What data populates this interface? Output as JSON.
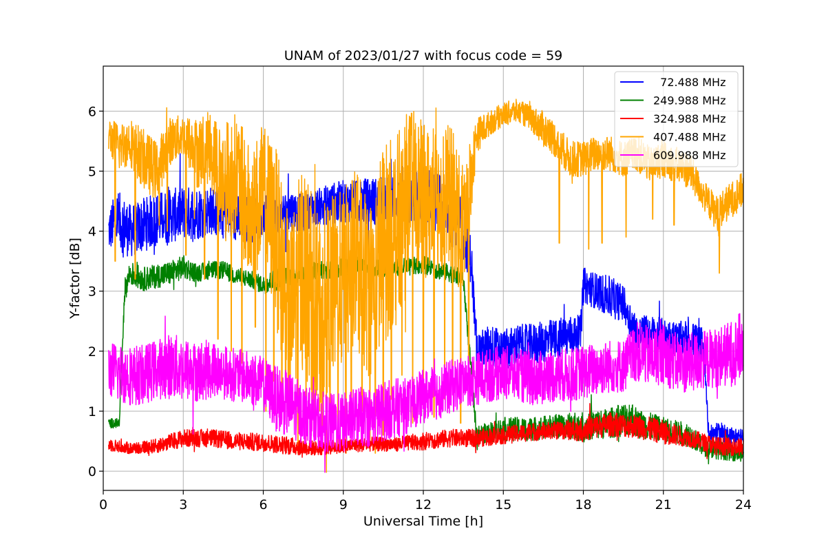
{
  "chart_data": {
    "type": "line",
    "title": "UNAM of 2023/01/27 with focus code = 59",
    "xlabel": "Universal Time [h]",
    "ylabel": "Y-factor [dB]",
    "xlim": [
      0,
      24
    ],
    "ylim": [
      -0.32,
      6.75
    ],
    "xticks": [
      0,
      3,
      6,
      9,
      12,
      15,
      18,
      21,
      24
    ],
    "yticks": [
      0,
      1,
      2,
      3,
      4,
      5,
      6
    ],
    "grid": true,
    "legend_position": "top-right",
    "series": [
      {
        "name": "  72.488 MHz",
        "color": "#0000ff",
        "x": [
          0.2,
          0.5,
          1,
          1.5,
          2,
          2.5,
          3,
          3.5,
          4,
          4.5,
          5,
          5.5,
          6,
          6.5,
          7,
          7.5,
          8,
          8.5,
          9,
          9.5,
          10,
          10.5,
          11,
          11.5,
          12,
          12.5,
          13,
          13.5,
          13.8,
          14,
          14.5,
          15,
          15.5,
          16,
          16.5,
          17,
          17.5,
          17.9,
          18,
          18.5,
          19,
          19.5,
          20,
          20.5,
          21,
          21.5,
          22,
          22.5,
          22.7,
          23,
          23.5,
          24
        ],
        "y": [
          4.0,
          4.2,
          4.0,
          4.1,
          4.2,
          4.25,
          4.3,
          4.3,
          4.35,
          4.3,
          4.2,
          4.2,
          4.25,
          4.2,
          4.35,
          4.3,
          4.4,
          4.45,
          4.5,
          4.5,
          4.5,
          4.5,
          4.55,
          4.5,
          4.6,
          4.5,
          4.3,
          4.0,
          3.5,
          2.0,
          2.1,
          2.0,
          2.1,
          2.1,
          2.15,
          2.2,
          2.25,
          2.3,
          3.1,
          3.0,
          2.9,
          2.8,
          2.3,
          2.3,
          2.25,
          2.2,
          2.2,
          2.1,
          0.6,
          0.65,
          0.6,
          0.55
        ],
        "amp": [
          0.35,
          0.5,
          0.45,
          0.45,
          0.45,
          0.45,
          0.45,
          0.45,
          0.4,
          0.45,
          0.4,
          0.4,
          0.35,
          0.4,
          0.35,
          0.3,
          0.3,
          0.35,
          0.35,
          0.35,
          0.4,
          0.4,
          0.4,
          0.4,
          0.5,
          0.5,
          0.5,
          0.5,
          0.4,
          0.3,
          0.35,
          0.35,
          0.35,
          0.35,
          0.35,
          0.35,
          0.35,
          0.3,
          0.3,
          0.3,
          0.35,
          0.3,
          0.3,
          0.3,
          0.3,
          0.3,
          0.3,
          0.3,
          0.15,
          0.15,
          0.15,
          0.15
        ]
      },
      {
        "name": "249.988 MHz",
        "color": "#008000",
        "x": [
          0.2,
          0.6,
          0.8,
          1,
          1.5,
          2,
          2.5,
          3,
          3.5,
          4,
          4.5,
          5,
          5.5,
          6,
          6.5,
          7,
          7.5,
          8,
          8.5,
          9,
          9.5,
          10,
          10.5,
          11,
          11.5,
          12,
          12.5,
          13,
          13.5,
          14,
          15,
          16,
          17,
          18,
          19,
          19.8,
          20,
          21,
          22,
          22.5,
          23,
          24
        ],
        "y": [
          0.8,
          0.8,
          3.0,
          3.3,
          3.2,
          3.25,
          3.3,
          3.4,
          3.3,
          3.35,
          3.35,
          3.25,
          3.2,
          3.1,
          3.2,
          3.25,
          3.3,
          3.35,
          3.35,
          3.4,
          3.45,
          3.4,
          3.35,
          3.4,
          3.4,
          3.45,
          3.35,
          3.3,
          3.2,
          0.6,
          0.7,
          0.7,
          0.75,
          0.75,
          0.8,
          0.9,
          0.8,
          0.7,
          0.6,
          0.4,
          0.35,
          0.3
        ],
        "amp": [
          0.08,
          0.08,
          0.2,
          0.2,
          0.2,
          0.2,
          0.2,
          0.2,
          0.15,
          0.15,
          0.15,
          0.15,
          0.15,
          0.15,
          0.2,
          0.15,
          0.15,
          0.15,
          0.15,
          0.15,
          0.15,
          0.15,
          0.15,
          0.15,
          0.15,
          0.15,
          0.15,
          0.15,
          0.15,
          0.15,
          0.2,
          0.2,
          0.2,
          0.25,
          0.25,
          0.3,
          0.25,
          0.2,
          0.2,
          0.15,
          0.15,
          0.15
        ]
      },
      {
        "name": "324.988 MHz",
        "color": "#ff0000",
        "x": [
          0.2,
          0.5,
          1,
          2,
          3,
          4,
          5,
          6,
          7,
          8,
          9,
          10,
          11,
          12,
          13,
          14,
          15,
          16,
          17,
          18,
          19,
          20,
          21,
          22,
          23,
          24
        ],
        "y": [
          0.45,
          0.42,
          0.38,
          0.42,
          0.55,
          0.55,
          0.5,
          0.48,
          0.42,
          0.38,
          0.42,
          0.45,
          0.45,
          0.5,
          0.55,
          0.55,
          0.6,
          0.65,
          0.68,
          0.7,
          0.78,
          0.75,
          0.65,
          0.55,
          0.42,
          0.4
        ],
        "amp": [
          0.12,
          0.1,
          0.1,
          0.12,
          0.15,
          0.15,
          0.15,
          0.15,
          0.15,
          0.12,
          0.12,
          0.12,
          0.12,
          0.15,
          0.15,
          0.15,
          0.15,
          0.15,
          0.15,
          0.2,
          0.2,
          0.2,
          0.2,
          0.15,
          0.15,
          0.15
        ]
      },
      {
        "name": "407.488 MHz",
        "color": "#ffa500",
        "x": [
          0.2,
          0.6,
          1,
          1.5,
          2,
          2.5,
          3,
          3.5,
          4,
          4.5,
          5,
          5.5,
          6,
          6.5,
          7,
          7.5,
          8,
          8.5,
          9,
          9.5,
          10,
          10.5,
          11,
          11.5,
          12,
          12.5,
          13,
          13.5,
          14,
          14.5,
          15,
          15.5,
          16,
          16.5,
          17,
          17.5,
          18,
          18.5,
          19,
          19.5,
          20,
          20.5,
          21,
          21.5,
          22,
          22.5,
          23,
          23.5,
          24
        ],
        "y": [
          5.6,
          5.4,
          5.5,
          5.2,
          5.0,
          5.5,
          5.6,
          5.3,
          5.4,
          4.8,
          5.0,
          4.2,
          4.6,
          3.9,
          2.5,
          3.5,
          2.5,
          3.0,
          3.2,
          3.5,
          3.0,
          3.8,
          4.0,
          4.8,
          4.5,
          4.5,
          4.6,
          4.0,
          5.6,
          5.8,
          5.95,
          6.0,
          5.9,
          5.7,
          5.5,
          5.2,
          5.2,
          5.3,
          5.3,
          5.2,
          5.3,
          5.1,
          5.2,
          5.1,
          5.0,
          4.6,
          4.3,
          4.5,
          4.7
        ],
        "amp": [
          0.3,
          0.4,
          0.4,
          0.5,
          0.5,
          0.4,
          0.35,
          0.6,
          0.6,
          1.0,
          1.0,
          1.2,
          1.2,
          1.5,
          1.6,
          1.8,
          1.8,
          1.6,
          1.5,
          1.6,
          1.5,
          1.7,
          1.6,
          1.3,
          1.3,
          1.2,
          1.2,
          1.2,
          0.3,
          0.2,
          0.2,
          0.2,
          0.2,
          0.3,
          0.3,
          0.3,
          0.3,
          0.3,
          0.3,
          0.3,
          0.3,
          0.3,
          0.3,
          0.3,
          0.3,
          0.25,
          0.3,
          0.3,
          0.3
        ],
        "dips": [
          [
            0.45,
            3.5
          ],
          [
            1.2,
            3.2
          ],
          [
            2.1,
            4.1
          ],
          [
            2.4,
            4.0
          ],
          [
            3.1,
            3.6
          ],
          [
            3.8,
            3.2
          ],
          [
            4.3,
            2.2
          ],
          [
            4.8,
            2.0
          ],
          [
            5.2,
            1.8
          ],
          [
            5.7,
            2.4
          ],
          [
            6.1,
            1.0
          ],
          [
            6.4,
            1.5
          ],
          [
            6.7,
            1.3
          ],
          [
            7.0,
            1.2
          ],
          [
            7.3,
            0.3
          ],
          [
            7.6,
            0.5
          ],
          [
            7.9,
            0.7
          ],
          [
            8.2,
            0.6
          ],
          [
            8.5,
            0.9
          ],
          [
            8.8,
            0.4
          ],
          [
            9.1,
            0.3
          ],
          [
            9.3,
            0.8
          ],
          [
            9.7,
            1.0
          ],
          [
            10.0,
            0.4
          ],
          [
            10.2,
            0.3
          ],
          [
            10.5,
            0.6
          ],
          [
            10.8,
            1.2
          ],
          [
            11.2,
            1.6
          ],
          [
            11.6,
            0.8
          ],
          [
            12.0,
            1.1
          ],
          [
            12.4,
            0.9
          ],
          [
            12.8,
            1.2
          ],
          [
            13.1,
            1.5
          ],
          [
            13.4,
            0.8
          ],
          [
            13.7,
            1.6
          ],
          [
            17.1,
            3.8
          ],
          [
            18.2,
            3.7
          ],
          [
            18.7,
            3.8
          ],
          [
            19.6,
            3.9
          ],
          [
            20.6,
            4.2
          ],
          [
            21.4,
            4.1
          ],
          [
            23.1,
            3.3
          ]
        ]
      },
      {
        "name": "609.988 MHz",
        "color": "#ff00ff",
        "x": [
          0.2,
          0.5,
          1,
          1.5,
          2,
          2.5,
          3,
          3.5,
          4,
          4.5,
          5,
          5.5,
          6,
          6.5,
          7,
          7.5,
          8,
          8.5,
          9,
          9.5,
          10,
          10.5,
          11,
          11.5,
          12,
          12.5,
          13,
          13.5,
          14,
          14.5,
          15,
          15.5,
          16,
          16.5,
          17,
          17.5,
          18,
          18.5,
          19,
          19.5,
          20,
          20.5,
          21,
          21.5,
          22,
          22.5,
          23,
          23.5,
          24
        ],
        "y": [
          1.7,
          1.65,
          1.6,
          1.6,
          1.7,
          1.75,
          1.7,
          1.65,
          1.7,
          1.65,
          1.6,
          1.55,
          1.45,
          1.2,
          1.1,
          0.95,
          0.85,
          0.8,
          0.8,
          0.9,
          0.9,
          1.0,
          1.05,
          1.1,
          1.25,
          1.3,
          1.4,
          1.5,
          1.55,
          1.6,
          1.65,
          1.6,
          1.55,
          1.55,
          1.6,
          1.6,
          1.65,
          1.7,
          1.75,
          1.75,
          2.0,
          1.9,
          1.95,
          1.8,
          1.8,
          1.85,
          1.9,
          1.95,
          2.1
        ],
        "amp": [
          0.45,
          0.5,
          0.5,
          0.5,
          0.5,
          0.55,
          0.55,
          0.5,
          0.5,
          0.45,
          0.45,
          0.45,
          0.45,
          0.55,
          0.55,
          0.5,
          0.5,
          0.5,
          0.5,
          0.5,
          0.5,
          0.5,
          0.5,
          0.45,
          0.45,
          0.45,
          0.45,
          0.45,
          0.45,
          0.45,
          0.45,
          0.45,
          0.45,
          0.45,
          0.45,
          0.45,
          0.45,
          0.45,
          0.45,
          0.45,
          0.5,
          0.5,
          0.5,
          0.5,
          0.5,
          0.5,
          0.5,
          0.55,
          0.6
        ]
      }
    ]
  }
}
